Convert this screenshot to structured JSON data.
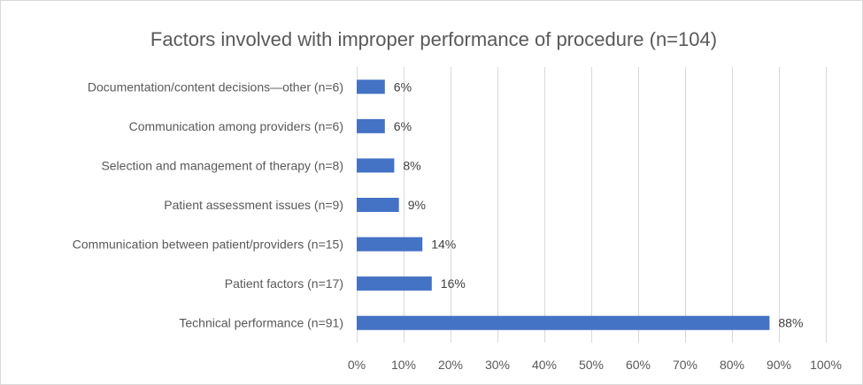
{
  "chart_data": {
    "type": "bar",
    "orientation": "horizontal",
    "title": "Factors involved with improper performance of procedure (n=104)",
    "xlabel": "",
    "ylabel": "",
    "categories": [
      "Documentation/content decisions—other (n=6)",
      "Communication among providers (n=6)",
      "Selection and management of therapy (n=8)",
      "Patient assessment issues (n=9)",
      "Communication between patient/providers (n=15)",
      "Patient factors (n=17)",
      "Technical performance (n=91)"
    ],
    "values": [
      6,
      6,
      8,
      9,
      14,
      16,
      88
    ],
    "data_labels": [
      "6%",
      "6%",
      "8%",
      "9%",
      "14%",
      "16%",
      "88%"
    ],
    "xlim": [
      0,
      100
    ],
    "xticks": [
      "0%",
      "10%",
      "20%",
      "30%",
      "40%",
      "50%",
      "60%",
      "70%",
      "80%",
      "90%",
      "100%"
    ],
    "grid": "vertical",
    "legend": "none",
    "colors": {
      "bar": "#4472c4",
      "grid": "#d9d9d9",
      "text": "#595959"
    }
  }
}
